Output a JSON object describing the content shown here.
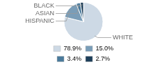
{
  "chart_data": {
    "type": "pie",
    "categories": [
      "WHITE",
      "HISPANIC",
      "ASIAN",
      "BLACK"
    ],
    "values": [
      78.9,
      15.0,
      3.4,
      2.7
    ],
    "value_labels": [
      "78.9%",
      "15.0%",
      "3.4%",
      "2.7%"
    ],
    "colors": [
      "#cdd9e5",
      "#7a9db8",
      "#4a7a9b",
      "#1e3f5a"
    ],
    "legend": "bottom"
  }
}
